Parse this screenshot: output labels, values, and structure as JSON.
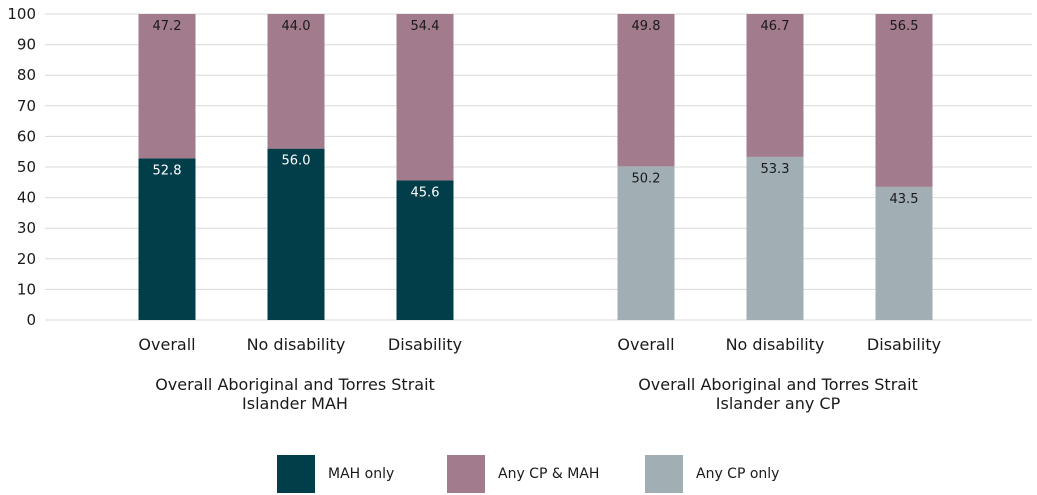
{
  "chart_data": {
    "type": "bar",
    "stacked": true,
    "ylim": [
      0,
      100
    ],
    "yticks": [
      0,
      10,
      20,
      30,
      40,
      50,
      60,
      70,
      80,
      90,
      100
    ],
    "grid": true,
    "groups": [
      {
        "label": "Overall Aboriginal and Torres Strait Islander MAH",
        "label_lines": [
          "Overall Aboriginal and Torres Strait",
          "Islander MAH"
        ],
        "categories": [
          "Overall",
          "No disability",
          "Disability"
        ],
        "series": [
          {
            "name": "MAH only",
            "values": [
              52.8,
              56.0,
              45.6
            ],
            "labels": [
              "52.8",
              "56.0",
              "45.6"
            ],
            "color": "#023d4a",
            "label_color": "#ffffff"
          },
          {
            "name": "Any CP & MAH",
            "values": [
              47.2,
              44.0,
              54.4
            ],
            "labels": [
              "47.2",
              "44.0",
              "54.4"
            ],
            "color": "#a27c8c",
            "label_color": "#1a1a1a"
          }
        ]
      },
      {
        "label": "Overall Aboriginal and Torres Strait Islander any CP",
        "label_lines": [
          "Overall Aboriginal and Torres Strait",
          "Islander any CP"
        ],
        "categories": [
          "Overall",
          "No disability",
          "Disability"
        ],
        "series": [
          {
            "name": "Any CP only",
            "values": [
              50.2,
              53.3,
              43.5
            ],
            "labels": [
              "50.2",
              "53.3",
              "43.5"
            ],
            "color": "#a1afb4",
            "label_color": "#1a1a1a"
          },
          {
            "name": "Any CP & MAH",
            "values": [
              49.8,
              46.7,
              56.5
            ],
            "labels": [
              "49.8",
              "46.7",
              "56.5"
            ],
            "color": "#a27c8c",
            "label_color": "#1a1a1a"
          }
        ]
      }
    ],
    "legend": [
      {
        "name": "MAH only",
        "color": "#023d4a"
      },
      {
        "name": "Any CP & MAH",
        "color": "#a27c8c"
      },
      {
        "name": "Any CP only",
        "color": "#a1afb4"
      }
    ],
    "legend_position": "bottom",
    "gridline_color": "#d9d9d9"
  }
}
